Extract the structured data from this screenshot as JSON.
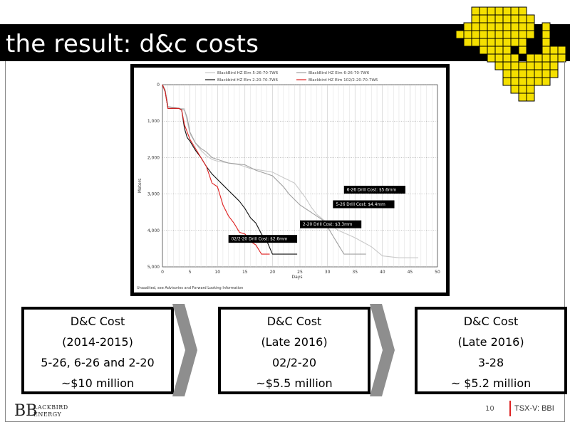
{
  "slide": {
    "title": "the result: d&c costs",
    "page_number": "10",
    "ticker": "TSX-V: BBI"
  },
  "brand": {
    "logo_initials": "BB",
    "logo_line1": "LACKBIRD",
    "logo_line2": "ENERGY",
    "accent_color": "#f5e000",
    "footer_accent_color": "#dd2222"
  },
  "cost_boxes": [
    {
      "title": "D&C Cost",
      "period": "(2014-2015)",
      "wells": "5-26, 6-26 and 2-20",
      "cost": "~$10 million"
    },
    {
      "title": "D&C Cost",
      "period": "(Late 2016)",
      "wells": "02/2-20",
      "cost": "~$5.5 million"
    },
    {
      "title": "D&C Cost",
      "period": "(Late 2016)",
      "wells": "3-28",
      "cost": "~ $5.2 million"
    }
  ],
  "chart_data": {
    "type": "line",
    "xlabel": "Days",
    "ylabel": "Meters",
    "xlim": [
      0,
      50
    ],
    "ylim": [
      5000,
      0
    ],
    "x_ticks": [
      0,
      5,
      10,
      15,
      20,
      25,
      30,
      35,
      40,
      45,
      50
    ],
    "y_ticks": [
      0,
      1000,
      2000,
      3000,
      4000,
      5000
    ],
    "y_tick_labels": [
      "0",
      "1,000",
      "2,000",
      "3,000",
      "4,000",
      "5,000"
    ],
    "grid": {
      "vertical": true,
      "horizontal_dotted": true
    },
    "legend_position": "top",
    "footnote": "Unaudited, see Advisories and Forward Looking Information",
    "series": [
      {
        "name": "BlackBird HZ Elm 5-26-70-7W6",
        "color": "#c8c8c8",
        "points": [
          [
            0,
            0
          ],
          [
            0.5,
            200
          ],
          [
            1,
            650
          ],
          [
            3,
            650
          ],
          [
            4,
            660
          ],
          [
            5,
            1350
          ],
          [
            6,
            1600
          ],
          [
            7,
            1800
          ],
          [
            8,
            1950
          ],
          [
            9,
            2050
          ],
          [
            10,
            2100
          ],
          [
            12,
            2150
          ],
          [
            14,
            2200
          ],
          [
            16,
            2300
          ],
          [
            18,
            2350
          ],
          [
            20,
            2400
          ],
          [
            22,
            2550
          ],
          [
            24,
            2700
          ],
          [
            26,
            3100
          ],
          [
            27,
            3350
          ],
          [
            28,
            3550
          ],
          [
            30,
            3800
          ],
          [
            32,
            4000
          ],
          [
            35,
            4200
          ],
          [
            38,
            4450
          ],
          [
            40,
            4700
          ],
          [
            43,
            4750
          ],
          [
            46.5,
            4750
          ]
        ]
      },
      {
        "name": "BlackBird HZ Elm 6-26-70-7W6",
        "color": "#a0a0a0",
        "points": [
          [
            0,
            0
          ],
          [
            0.5,
            150
          ],
          [
            1,
            600
          ],
          [
            3,
            650
          ],
          [
            4,
            700
          ],
          [
            4.5,
            900
          ],
          [
            5,
            1300
          ],
          [
            6,
            1600
          ],
          [
            7,
            1750
          ],
          [
            8,
            1850
          ],
          [
            9,
            2000
          ],
          [
            10,
            2050
          ],
          [
            11,
            2100
          ],
          [
            12,
            2150
          ],
          [
            15,
            2200
          ],
          [
            17,
            2350
          ],
          [
            19,
            2450
          ],
          [
            20,
            2500
          ],
          [
            22,
            2800
          ],
          [
            23,
            3000
          ],
          [
            25,
            3300
          ],
          [
            27,
            3500
          ],
          [
            29,
            3700
          ],
          [
            30,
            3900
          ],
          [
            31,
            4150
          ],
          [
            32,
            4400
          ],
          [
            33,
            4650
          ],
          [
            35,
            4650
          ],
          [
            37,
            4650
          ]
        ]
      },
      {
        "name": "Blackbird HZ Elm 2-20-70-7W6",
        "color": "#111111",
        "points": [
          [
            0,
            0
          ],
          [
            0.5,
            200
          ],
          [
            1,
            650
          ],
          [
            3,
            650
          ],
          [
            3.5,
            700
          ],
          [
            4,
            1200
          ],
          [
            4.5,
            1450
          ],
          [
            5,
            1550
          ],
          [
            6,
            1800
          ],
          [
            7,
            2000
          ],
          [
            8,
            2250
          ],
          [
            9,
            2450
          ],
          [
            10,
            2600
          ],
          [
            11,
            2750
          ],
          [
            12,
            2900
          ],
          [
            13,
            3050
          ],
          [
            14,
            3200
          ],
          [
            15,
            3400
          ],
          [
            16,
            3650
          ],
          [
            17,
            3800
          ],
          [
            18,
            4100
          ],
          [
            19,
            4300
          ],
          [
            20,
            4650
          ],
          [
            22,
            4650
          ],
          [
            24.5,
            4650
          ]
        ]
      },
      {
        "name": "Blackbird HZ Elm 102/2-20-70-7W6",
        "color": "#e02020",
        "points": [
          [
            0,
            0
          ],
          [
            0.5,
            200
          ],
          [
            1,
            650
          ],
          [
            3,
            650
          ],
          [
            3.5,
            700
          ],
          [
            4,
            1100
          ],
          [
            5,
            1500
          ],
          [
            6,
            1750
          ],
          [
            7,
            2000
          ],
          [
            8,
            2250
          ],
          [
            9,
            2700
          ],
          [
            10,
            2800
          ],
          [
            10.5,
            3050
          ],
          [
            11,
            3300
          ],
          [
            12,
            3600
          ],
          [
            13,
            3800
          ],
          [
            14,
            4050
          ],
          [
            15,
            4100
          ],
          [
            16,
            4300
          ],
          [
            17,
            4400
          ],
          [
            18,
            4650
          ],
          [
            19.5,
            4650
          ]
        ]
      }
    ],
    "annotations": [
      {
        "text": "6-26 Drill Cost: $5.6mm",
        "x": 33,
        "y": 2950
      },
      {
        "text": "5-26 Drill Cost: $4.4mm",
        "x": 31,
        "y": 3350
      },
      {
        "text": "2-20 Drill Cost: $3.3mm",
        "x": 25,
        "y": 3900
      },
      {
        "text": "02/2-20 Drill Cost: $2.6mm",
        "x": 12,
        "y": 4300
      }
    ]
  }
}
